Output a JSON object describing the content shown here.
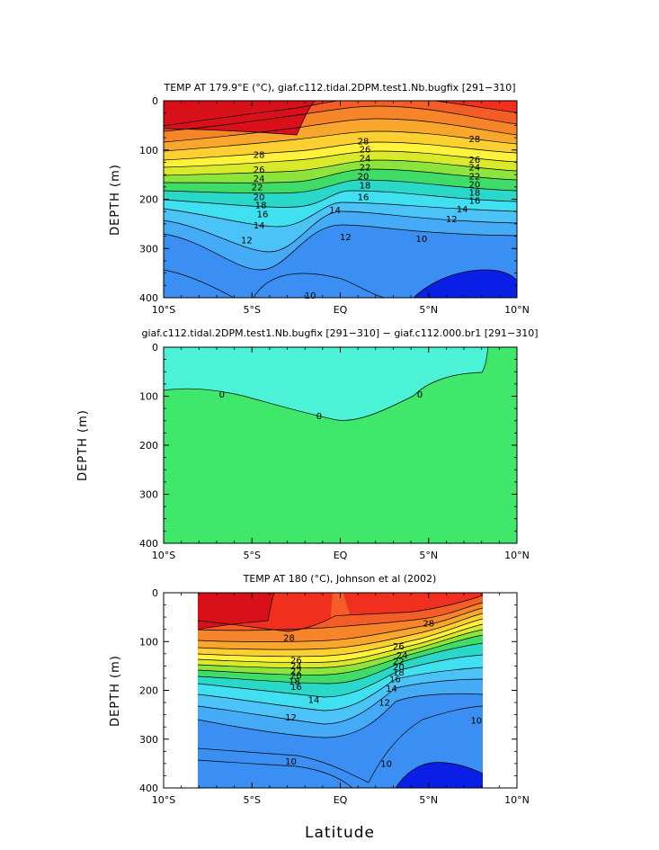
{
  "chart_data": [
    {
      "type": "heatmap",
      "title": "TEMP AT 179.9°E (°C), giaf.c112.tidal.2DPM.test1.Nb.bugfix [291−310]",
      "xlabel": "",
      "ylabel": "DEPTH (m)",
      "xlim": [
        -10,
        10
      ],
      "ylim": [
        400,
        0
      ],
      "x_ticks": [
        "10°S",
        "5°S",
        "EQ",
        "5°N",
        "10°N"
      ],
      "y_ticks": [
        "0",
        "100",
        "200",
        "300",
        "400"
      ],
      "data_extent": [
        -10,
        10
      ],
      "contour_labels": [
        {
          "text": "28",
          "x": -4.6,
          "y": 110
        },
        {
          "text": "26",
          "x": -4.6,
          "y": 140
        },
        {
          "text": "24",
          "x": -4.6,
          "y": 158
        },
        {
          "text": "22",
          "x": -4.7,
          "y": 175
        },
        {
          "text": "20",
          "x": -4.6,
          "y": 195
        },
        {
          "text": "18",
          "x": -4.5,
          "y": 212
        },
        {
          "text": "16",
          "x": -4.4,
          "y": 230
        },
        {
          "text": "14",
          "x": -4.6,
          "y": 253
        },
        {
          "text": "12",
          "x": -5.3,
          "y": 283
        },
        {
          "text": "28",
          "x": 1.3,
          "y": 82
        },
        {
          "text": "26",
          "x": 1.4,
          "y": 99
        },
        {
          "text": "24",
          "x": 1.4,
          "y": 117
        },
        {
          "text": "22",
          "x": 1.4,
          "y": 135
        },
        {
          "text": "20",
          "x": 1.3,
          "y": 153
        },
        {
          "text": "18",
          "x": 1.4,
          "y": 172
        },
        {
          "text": "16",
          "x": 1.3,
          "y": 195
        },
        {
          "text": "14",
          "x": -0.3,
          "y": 222
        },
        {
          "text": "12",
          "x": 0.3,
          "y": 277
        },
        {
          "text": "28",
          "x": 7.6,
          "y": 78
        },
        {
          "text": "26",
          "x": 7.6,
          "y": 120
        },
        {
          "text": "24",
          "x": 7.6,
          "y": 135
        },
        {
          "text": "22",
          "x": 7.6,
          "y": 153
        },
        {
          "text": "20",
          "x": 7.6,
          "y": 170
        },
        {
          "text": "18",
          "x": 7.6,
          "y": 186
        },
        {
          "text": "16",
          "x": 7.6,
          "y": 203
        },
        {
          "text": "14",
          "x": 6.9,
          "y": 220
        },
        {
          "text": "12",
          "x": 6.3,
          "y": 240
        },
        {
          "text": "10",
          "x": 4.6,
          "y": 280
        },
        {
          "text": "10",
          "x": -1.7,
          "y": 395
        }
      ],
      "colors": [
        "#0a1fe6",
        "#2f6ff0",
        "#3b8ff2",
        "#46abf6",
        "#4cc3f6",
        "#41e0f0",
        "#2ad8c8",
        "#3fdc68",
        "#8ce43c",
        "#d8ea2a",
        "#fff23a",
        "#fcd031",
        "#f9a62d",
        "#f6852a",
        "#f45d26",
        "#f02f1f",
        "#d8101a"
      ]
    },
    {
      "type": "heatmap",
      "title": "giaf.c112.tidal.2DPM.test1.Nb.bugfix [291−310] − giaf.c112.000.br1 [291−310]",
      "xlabel": "",
      "ylabel": "DEPTH (m)",
      "xlim": [
        -10,
        10
      ],
      "ylim": [
        400,
        0
      ],
      "x_ticks": [
        "10°S",
        "5°S",
        "EQ",
        "5°N",
        "10°N"
      ],
      "y_ticks": [
        "0",
        "100",
        "200",
        "300",
        "400"
      ],
      "data_extent": [
        -10,
        10
      ],
      "contour_labels": [
        {
          "text": "0",
          "x": -6.7,
          "y": 96
        },
        {
          "text": "0",
          "x": -1.2,
          "y": 140
        },
        {
          "text": "0",
          "x": 4.5,
          "y": 96
        }
      ],
      "colors": [
        "#3fe86a",
        "#4cf2d6"
      ]
    },
    {
      "type": "heatmap",
      "title": "TEMP AT 180 (°C), Johnson et al (2002)",
      "xlabel": "Latitude",
      "ylabel": "DEPTH (m)",
      "xlim": [
        -10,
        10
      ],
      "ylim": [
        400,
        0
      ],
      "x_ticks": [
        "10°S",
        "5°S",
        "EQ",
        "5°N",
        "10°N"
      ],
      "y_ticks": [
        "0",
        "100",
        "200",
        "300",
        "400"
      ],
      "data_extent": [
        -8,
        8
      ],
      "contour_labels": [
        {
          "text": "28",
          "x": -2.9,
          "y": 92
        },
        {
          "text": "26",
          "x": -2.5,
          "y": 138
        },
        {
          "text": "24",
          "x": -2.5,
          "y": 150
        },
        {
          "text": "22",
          "x": -2.5,
          "y": 160
        },
        {
          "text": "20",
          "x": -2.5,
          "y": 170
        },
        {
          "text": "18",
          "x": -2.6,
          "y": 182
        },
        {
          "text": "16",
          "x": -2.5,
          "y": 193
        },
        {
          "text": "14",
          "x": -1.5,
          "y": 219
        },
        {
          "text": "12",
          "x": -2.8,
          "y": 255
        },
        {
          "text": "28",
          "x": 5.0,
          "y": 63
        },
        {
          "text": "26",
          "x": 3.3,
          "y": 110
        },
        {
          "text": "24",
          "x": 3.5,
          "y": 128
        },
        {
          "text": "22",
          "x": 3.3,
          "y": 140
        },
        {
          "text": "20",
          "x": 3.3,
          "y": 152
        },
        {
          "text": "18",
          "x": 3.3,
          "y": 163
        },
        {
          "text": "16",
          "x": 3.1,
          "y": 177
        },
        {
          "text": "14",
          "x": 2.9,
          "y": 196
        },
        {
          "text": "12",
          "x": 2.5,
          "y": 225
        },
        {
          "text": "10",
          "x": 7.7,
          "y": 262
        },
        {
          "text": "10",
          "x": -2.8,
          "y": 346
        },
        {
          "text": "10",
          "x": 2.6,
          "y": 350
        }
      ],
      "colors": [
        "#0a1fe6",
        "#2f6ff0",
        "#3b8ff2",
        "#46abf6",
        "#4cc3f6",
        "#41e0f0",
        "#2ad8c8",
        "#3fdc68",
        "#8ce43c",
        "#d8ea2a",
        "#fff23a",
        "#fcd031",
        "#f9a62d",
        "#f6852a",
        "#f45d26",
        "#f02f1f",
        "#d8101a"
      ]
    }
  ],
  "figure": {
    "xlabel": "Latitude"
  }
}
